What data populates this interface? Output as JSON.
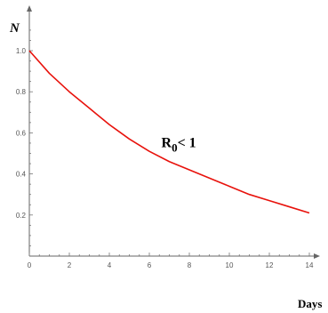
{
  "chart_data": {
    "type": "line",
    "xlabel": "Days",
    "ylabel": "N",
    "xlim": [
      0,
      14.8
    ],
    "ylim": [
      0,
      1.15
    ],
    "xticks": [
      0,
      2,
      4,
      6,
      8,
      10,
      12,
      14
    ],
    "xtick_labels": [
      "0",
      "2",
      "4",
      "6",
      "8",
      "10",
      "12",
      "14"
    ],
    "yticks": [
      0.2,
      0.4,
      0.6,
      0.8,
      1.0
    ],
    "ytick_labels": [
      "0.2",
      "0.4",
      "0.6",
      "0.8",
      "1.0"
    ],
    "grid": false,
    "series": [
      {
        "color": "#e8120c",
        "x": [
          0,
          1,
          2,
          3,
          4,
          5,
          6,
          7,
          8,
          9,
          10,
          11,
          12,
          13,
          14
        ],
        "y": [
          1.0,
          0.89,
          0.8,
          0.72,
          0.64,
          0.57,
          0.51,
          0.46,
          0.42,
          0.38,
          0.34,
          0.3,
          0.27,
          0.24,
          0.21
        ]
      }
    ],
    "annotation": {
      "base": "R",
      "subscript": "0",
      "tail": "< 1",
      "x": 6.6,
      "y": 0.53
    }
  }
}
